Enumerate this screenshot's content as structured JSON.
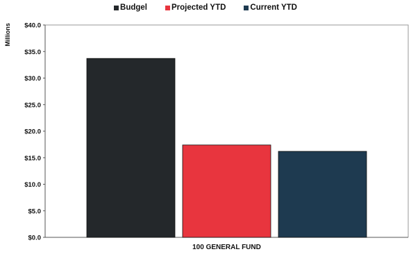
{
  "chart_data": {
    "type": "bar",
    "categories": [
      "100 GENERAL FUND"
    ],
    "series": [
      {
        "name": "Budgel",
        "values": [
          33.7
        ],
        "color": "#24282b"
      },
      {
        "name": "Projected YTD",
        "values": [
          17.4
        ],
        "color": "#e8353e"
      },
      {
        "name": "Current YTD",
        "values": [
          16.2
        ],
        "color": "#1e3a50"
      }
    ],
    "title": "",
    "xlabel": "",
    "ylabel": "Millions",
    "ylim": [
      0,
      40
    ],
    "y_ticks": [
      "$0.0",
      "$5.0",
      "$10.0",
      "$15.0",
      "$20.0",
      "$25.0",
      "$30.0",
      "$35.0",
      "$40.0"
    ],
    "grid": false,
    "legend_position": "top-center"
  }
}
